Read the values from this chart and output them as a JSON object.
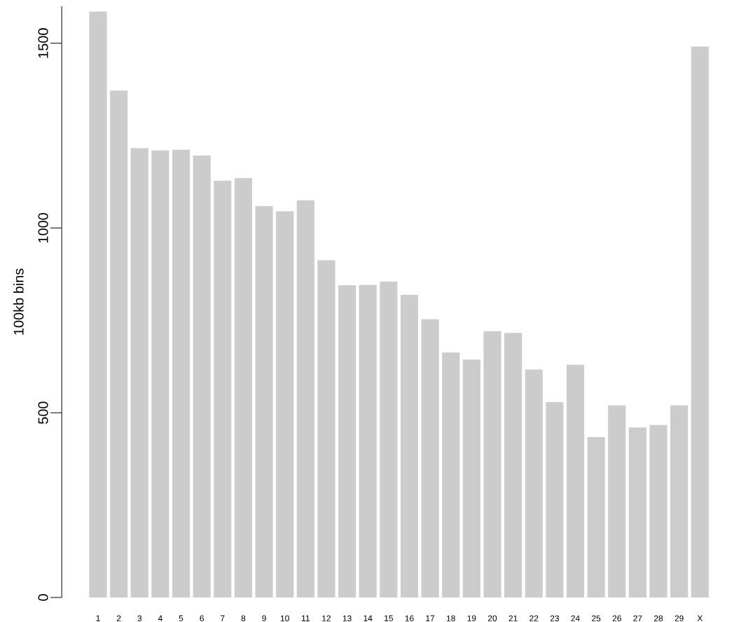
{
  "chart_data": {
    "type": "bar",
    "ylabel": "100kb bins",
    "categories": [
      "1",
      "2",
      "3",
      "4",
      "5",
      "6",
      "7",
      "8",
      "9",
      "10",
      "11",
      "12",
      "13",
      "14",
      "15",
      "16",
      "17",
      "18",
      "19",
      "20",
      "21",
      "22",
      "23",
      "24",
      "25",
      "26",
      "27",
      "28",
      "29",
      "X"
    ],
    "values": [
      1586,
      1372,
      1216,
      1210,
      1212,
      1196,
      1128,
      1135,
      1059,
      1045,
      1075,
      913,
      845,
      846,
      855,
      819,
      753,
      663,
      644,
      721,
      716,
      617,
      529,
      630,
      434,
      520,
      460,
      467,
      520,
      1491
    ],
    "color": "#cccccc",
    "ylim": [
      0,
      1600
    ],
    "yticks": [
      0,
      500,
      1000,
      1500
    ]
  }
}
